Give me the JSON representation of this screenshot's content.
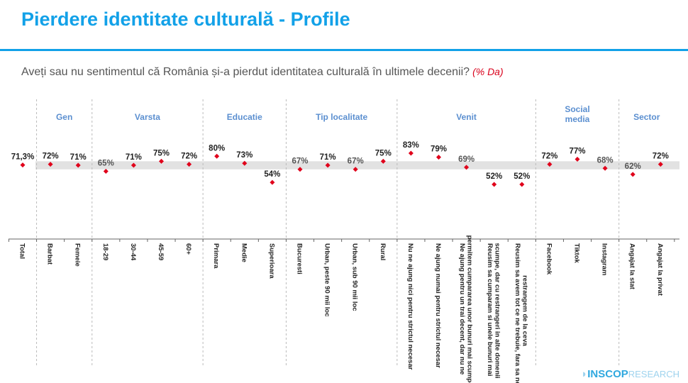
{
  "title": "Pierdere identitate culturală - Profile",
  "question": "Aveți sau nu sentimentul că România și-a pierdut identitatea culturală în ultimele decenii?",
  "question_note": "(% Da)",
  "logo": {
    "brand": "INSCOP",
    "suffix": "RESEARCH"
  },
  "chart_data": {
    "type": "scatter",
    "title": "",
    "categories": [
      "Total",
      "Barbat",
      "Femeie",
      "18-29",
      "30-44",
      "45-59",
      "60+",
      "Primara",
      "Medie",
      "Superioara",
      "Bucuresti",
      "Urban, peste 90 mii loc",
      "Urban, sub 90 mii loc",
      "Rural",
      "Nu ne ajung nici pentru strictul necesar",
      "Ne ajung numai pentru strictul necesar",
      "Ne ajung pentru un trai decent, dar nu ne permitem cumpararea unor bunuri mai scumpe",
      "Reusim sa cumparam si unele bunuri mai scumpe, dar cu restrangeri in alte domenii",
      "Reusim sa avem tot ce ne trebuie, fara sa ne restrangem de la ceva",
      "Facebook",
      "Tiktok",
      "Instagram",
      "Angajat la stat",
      "Angajat la privat"
    ],
    "values": [
      71.3,
      72,
      71,
      65,
      71,
      75,
      72,
      80,
      73,
      54,
      67,
      71,
      67,
      75,
      83,
      79,
      69,
      52,
      52,
      72,
      77,
      68,
      62,
      72
    ],
    "labels": [
      "71,3%",
      "72%",
      "71%",
      "65%",
      "71%",
      "75%",
      "72%",
      "80%",
      "73%",
      "54%",
      "67%",
      "71%",
      "67%",
      "75%",
      "83%",
      "79%",
      "69%",
      "52%",
      "52%",
      "72%",
      "77%",
      "68%",
      "62%",
      "72%"
    ],
    "groups": [
      {
        "name": "Gen",
        "start": 1,
        "end": 2
      },
      {
        "name": "Varsta",
        "start": 3,
        "end": 6
      },
      {
        "name": "Educatie",
        "start": 7,
        "end": 9
      },
      {
        "name": "Tip localitate",
        "start": 10,
        "end": 13
      },
      {
        "name": "Venit",
        "start": 14,
        "end": 18
      },
      {
        "name": "Social media",
        "start": 19,
        "end": 21
      },
      {
        "name": "Sector",
        "start": 22,
        "end": 23
      }
    ],
    "band": [
      67,
      75
    ],
    "marker_color": "#e0001b",
    "header_color": "#5b8fd0"
  }
}
